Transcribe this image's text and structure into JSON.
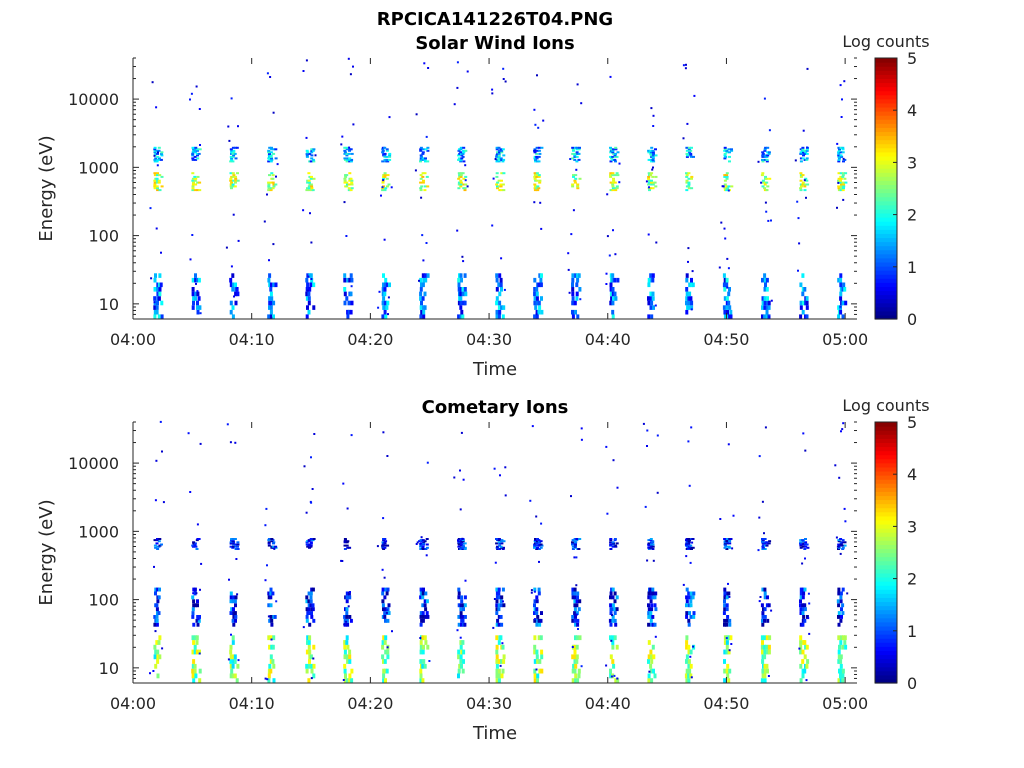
{
  "figure_title": "RPCICA141226T04.PNG",
  "chart_data": [
    {
      "type": "heatmap",
      "title": "Solar Wind Ions",
      "xlabel": "Time",
      "ylabel": "Energy (eV)",
      "y_scale": "log",
      "ylim": [
        6,
        40000
      ],
      "x_ticks": [
        "04:00",
        "04:10",
        "04:20",
        "04:30",
        "04:40",
        "04:50",
        "05:00"
      ],
      "x_range_minutes": [
        0,
        61
      ],
      "y_ticks": [
        10,
        100,
        1000,
        10000
      ],
      "y_tick_labels": [
        "10",
        "100",
        "1000",
        "10000"
      ],
      "colorbar": {
        "label": "Log counts",
        "min": 0,
        "max": 5,
        "ticks": [
          "0",
          "1",
          "2",
          "3",
          "4",
          "5"
        ],
        "colormap": "jet"
      },
      "scan_period_minutes": 3.2,
      "scan_start_minutes": 1.7,
      "bands": [
        {
          "name": "solar-wind-peak",
          "e_low": 450,
          "e_high": 850,
          "log_counts": 2.7
        },
        {
          "name": "solar-wind-alpha",
          "e_low": 1200,
          "e_high": 2000,
          "log_counts": 1.5
        },
        {
          "name": "low-energy",
          "e_low": 6,
          "e_high": 28,
          "log_counts": 1.2
        }
      ]
    },
    {
      "type": "heatmap",
      "title": "Cometary Ions",
      "xlabel": "Time",
      "ylabel": "Energy (eV)",
      "y_scale": "log",
      "ylim": [
        6,
        40000
      ],
      "x_ticks": [
        "04:00",
        "04:10",
        "04:20",
        "04:30",
        "04:40",
        "04:50",
        "05:00"
      ],
      "x_range_minutes": [
        0,
        61
      ],
      "y_ticks": [
        10,
        100,
        1000,
        10000
      ],
      "y_tick_labels": [
        "10",
        "100",
        "1000",
        "10000"
      ],
      "colorbar": {
        "label": "Log counts",
        "min": 0,
        "max": 5,
        "ticks": [
          "0",
          "1",
          "2",
          "3",
          "4",
          "5"
        ],
        "colormap": "jet"
      },
      "scan_period_minutes": 3.2,
      "scan_start_minutes": 1.7,
      "bands": [
        {
          "name": "cometary-core",
          "e_low": 6,
          "e_high": 30,
          "log_counts": 2.5
        },
        {
          "name": "cometary-mid",
          "e_low": 40,
          "e_high": 150,
          "log_counts": 0.8
        },
        {
          "name": "cometary-high",
          "e_low": 550,
          "e_high": 800,
          "log_counts": 0.7
        }
      ]
    }
  ]
}
